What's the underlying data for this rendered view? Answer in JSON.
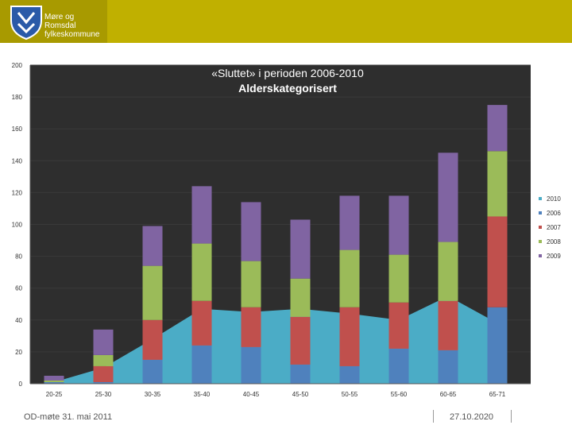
{
  "header": {
    "org_line1": "Møre og Romsdal",
    "org_line2": "fylkeskommune"
  },
  "footer": {
    "left_text": "OD-møte 31. mai 2011",
    "date": "27.10.2020"
  },
  "colors": {
    "header_bg": "#c0b000",
    "plot_bg": "#2e2e2e",
    "area": "#4bacc6",
    "s2006": "#4f81bd",
    "s2007": "#c0504d",
    "s2008": "#9bbb59",
    "s2009": "#8064a2"
  },
  "chart_data": {
    "type": "bar",
    "stacked": true,
    "title_line1": "«Sluttet» i perioden 2006-2010",
    "title_line2": "Alderskategorisert",
    "xlabel": "",
    "ylabel": "",
    "ylim": [
      0,
      200
    ],
    "yticks": [
      "0",
      "20",
      "40",
      "60",
      "80",
      "100",
      "120",
      "140",
      "160",
      "180",
      "200"
    ],
    "categories": [
      "20-25",
      "25-30",
      "30-35",
      "35-40",
      "40-45",
      "45-50",
      "50-55",
      "55-60",
      "60-65",
      "65-71"
    ],
    "legend": [
      "2010",
      "2006",
      "2007",
      "2008",
      "2009"
    ],
    "area_series": {
      "name": "2010",
      "values": [
        1,
        10,
        28,
        47,
        45,
        47,
        44,
        40,
        55,
        38
      ]
    },
    "series": [
      {
        "name": "2006",
        "values": [
          1,
          1,
          15,
          24,
          23,
          12,
          11,
          22,
          21,
          48
        ]
      },
      {
        "name": "2007",
        "values": [
          0,
          10,
          25,
          28,
          25,
          30,
          37,
          29,
          31,
          57
        ]
      },
      {
        "name": "2008",
        "values": [
          1,
          7,
          34,
          36,
          29,
          24,
          36,
          30,
          37,
          41
        ]
      },
      {
        "name": "2009",
        "values": [
          3,
          16,
          25,
          36,
          37,
          37,
          34,
          37,
          56,
          29
        ]
      }
    ]
  }
}
